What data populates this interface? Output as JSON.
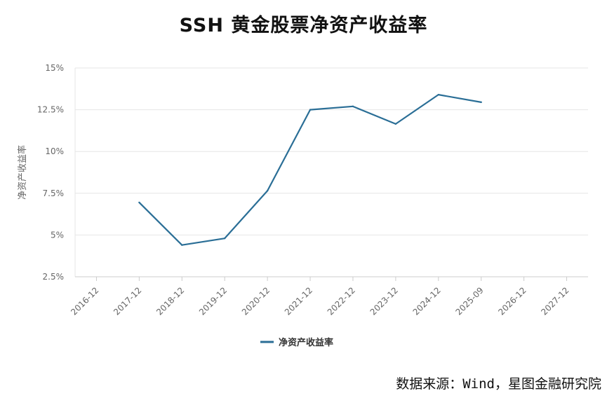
{
  "chart_data": {
    "type": "line",
    "title": "SSH 黄金股票净资产收益率",
    "ylabel": "净资产收益率",
    "xlabel": "",
    "categories": [
      "2016-12",
      "2017-12",
      "2018-12",
      "2019-12",
      "2020-12",
      "2021-12",
      "2022-12",
      "2023-12",
      "2024-12",
      "2025-09",
      "2026-12",
      "2027-12"
    ],
    "series": [
      {
        "name": "净资产收益率",
        "color": "#2a6e96",
        "values": [
          null,
          6.95,
          4.4,
          4.8,
          7.65,
          12.5,
          12.7,
          11.65,
          13.4,
          12.95,
          null,
          null
        ]
      }
    ],
    "ylim": [
      2.5,
      15
    ],
    "yticks": [
      2.5,
      5,
      7.5,
      10,
      12.5,
      15
    ],
    "ytick_labels": [
      "2.5%",
      "5%",
      "7.5%",
      "10%",
      "12.5%",
      "15%"
    ],
    "grid": true,
    "legend_position": "bottom-center"
  },
  "source_text": "数据来源：Wind，星图金融研究院"
}
